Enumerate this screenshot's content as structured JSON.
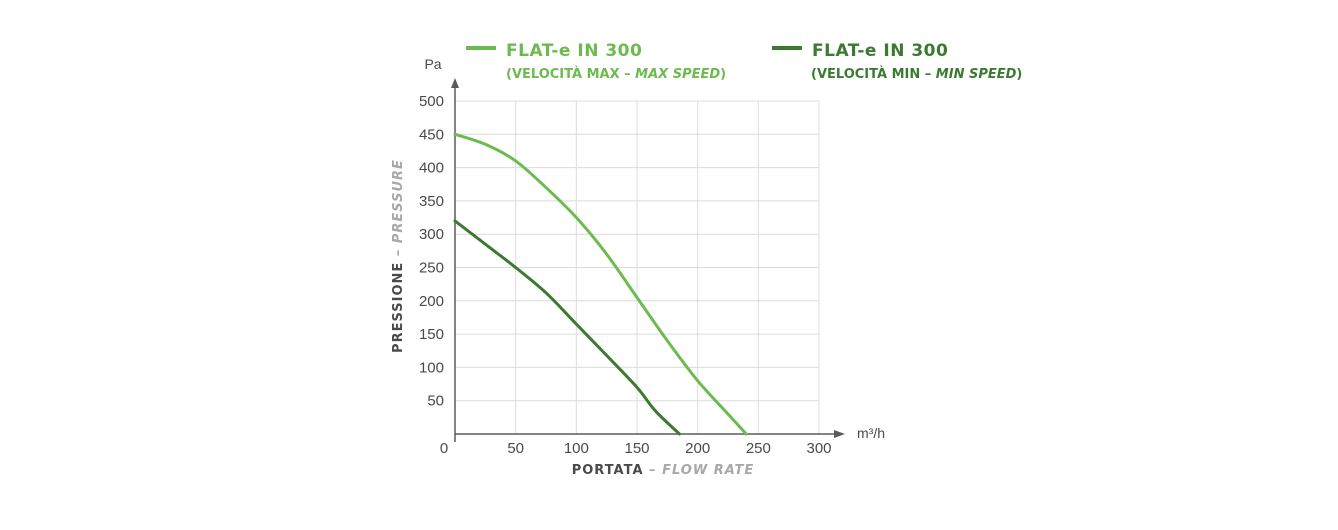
{
  "chart_data": {
    "type": "line",
    "xlim": [
      0,
      300
    ],
    "ylim": [
      0,
      500
    ],
    "x_ticks": [
      "0",
      "50",
      "100",
      "150",
      "200",
      "250",
      "300"
    ],
    "y_ticks": [
      "50",
      "100",
      "150",
      "200",
      "250",
      "300",
      "350",
      "400",
      "450",
      "500"
    ],
    "x_unit": "m³/h",
    "y_unit": "Pa",
    "xlabel": {
      "main": "PORTATA",
      "dash": " – ",
      "sub": "FLOW RATE"
    },
    "ylabel": {
      "main": "PRESSIONE",
      "dash": " – ",
      "sub": "PRESSURE"
    },
    "grid": true,
    "legend_position": "top",
    "series": [
      {
        "name": "FLAT-e IN 300",
        "subtitle_main": "(VELOCITÀ MAX – ",
        "subtitle_italic": "MAX SPEED",
        "subtitle_end": ")",
        "color": "#6dbb50",
        "points": [
          [
            0,
            450
          ],
          [
            25,
            435
          ],
          [
            50,
            410
          ],
          [
            75,
            370
          ],
          [
            100,
            325
          ],
          [
            125,
            270
          ],
          [
            150,
            205
          ],
          [
            175,
            140
          ],
          [
            200,
            80
          ],
          [
            225,
            30
          ],
          [
            240,
            0
          ]
        ]
      },
      {
        "name": "FLAT-e IN 300",
        "subtitle_main": "(VELOCITÀ MIN – ",
        "subtitle_italic": "MIN SPEED",
        "subtitle_end": ")",
        "color": "#3c7a32",
        "points": [
          [
            0,
            320
          ],
          [
            25,
            285
          ],
          [
            50,
            250
          ],
          [
            75,
            212
          ],
          [
            100,
            165
          ],
          [
            125,
            118
          ],
          [
            150,
            70
          ],
          [
            165,
            35
          ],
          [
            185,
            0
          ]
        ]
      }
    ],
    "title_color": "#4a4a4a",
    "subtitle_color": "#a8a8a8"
  }
}
